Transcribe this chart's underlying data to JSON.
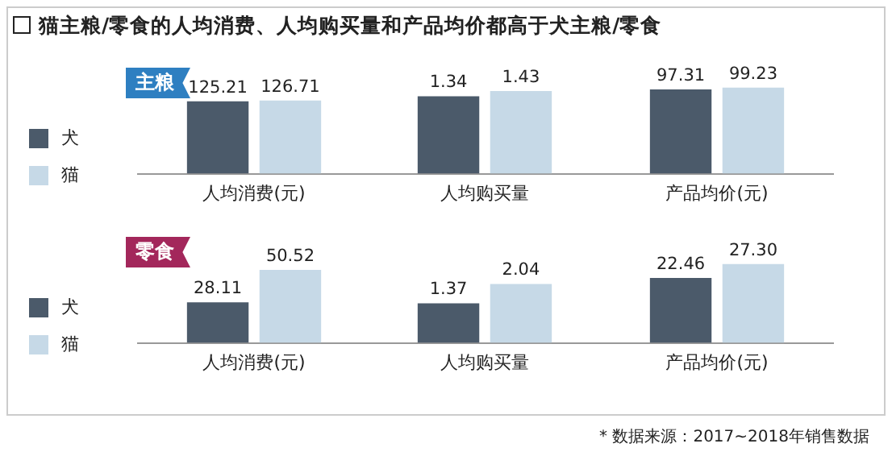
{
  "chart_data": [
    {
      "type": "bar",
      "title": "猫主粮/零食的人均消费、人均购买量和产品均价都高于犬主粮/零食",
      "subtitle": "主粮",
      "categories": [
        "人均消费(元)"
      ],
      "tick_labels": "x",
      "legend": "left",
      "grid": false,
      "series": [
        {
          "name": "犬",
          "color": "#4b5a6a",
          "values": [
            125.21
          ],
          "value_labels": [
            "125.21"
          ]
        },
        {
          "name": "猫",
          "color": "#c6d9e7",
          "values": [
            126.71
          ],
          "value_labels": [
            "126.71"
          ]
        }
      ]
    },
    {
      "type": "bar",
      "categories": [
        "人均购买量"
      ],
      "tick_labels": "x",
      "grid": false,
      "series": [
        {
          "color": "#4b5a6a",
          "values": [
            1.34
          ],
          "value_labels": [
            "1.34"
          ]
        },
        {
          "color": "#c6d9e7",
          "values": [
            1.43
          ],
          "value_labels": [
            "1.43"
          ]
        }
      ]
    },
    {
      "type": "bar",
      "categories": [
        "产品均价(元)"
      ],
      "tick_labels": "x",
      "grid": false,
      "series": [
        {
          "color": "#4b5a6a",
          "values": [
            97.31
          ],
          "value_labels": [
            "97.31"
          ]
        },
        {
          "color": "#c6d9e7",
          "values": [
            99.23
          ],
          "value_labels": [
            "99.23"
          ]
        }
      ]
    },
    {
      "type": "bar",
      "subtitle": "零食",
      "categories": [
        "人均消费(元)"
      ],
      "tick_labels": "x",
      "legend": "left",
      "grid": false,
      "series": [
        {
          "name": "犬",
          "color": "#4b5a6a",
          "values": [
            28.11
          ],
          "value_labels": [
            "28.11"
          ]
        },
        {
          "name": "猫",
          "color": "#c6d9e7",
          "values": [
            50.52
          ],
          "value_labels": [
            "50.52"
          ]
        }
      ]
    },
    {
      "type": "bar",
      "categories": [
        "人均购买量"
      ],
      "tick_labels": "x",
      "grid": false,
      "series": [
        {
          "color": "#4b5a6a",
          "values": [
            1.37
          ],
          "value_labels": [
            "1.37"
          ]
        },
        {
          "color": "#c6d9e7",
          "values": [
            2.04
          ],
          "value_labels": [
            "2.04"
          ]
        }
      ]
    },
    {
      "type": "bar",
      "categories": [
        "产品均价(元)"
      ],
      "tick_labels": "x",
      "grid": false,
      "annotations": [
        "* 数据来源：2017~2018年销售数据"
      ],
      "series": [
        {
          "color": "#4b5a6a",
          "values": [
            22.46
          ],
          "value_labels": [
            "22.46"
          ]
        },
        {
          "color": "#c6d9e7",
          "values": [
            27.3
          ],
          "value_labels": [
            "27.30"
          ]
        }
      ]
    }
  ]
}
